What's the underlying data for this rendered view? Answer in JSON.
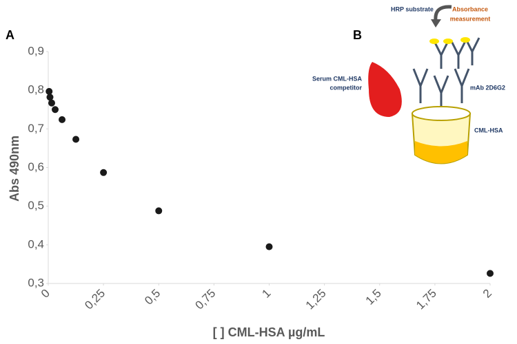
{
  "chart_data": {
    "type": "scatter",
    "panel_label": "A",
    "xlabel": "[ ] CML-HSA µg/mL",
    "ylabel": "Abs 490nm",
    "x": [
      0.0039,
      0.0078,
      0.0156,
      0.03125,
      0.0625,
      0.125,
      0.25,
      0.5,
      1,
      2
    ],
    "series": [
      {
        "color": "#1a1a1a",
        "values": [
          0.797,
          0.782,
          0.767,
          0.75,
          0.724,
          0.673,
          0.587,
          0.488,
          0.395,
          0.326
        ]
      }
    ],
    "xlim": [
      0,
      2
    ],
    "ylim": [
      0.3,
      0.9
    ],
    "xticks": [
      0,
      {
        "value": 0.25,
        "label": "0,25"
      },
      {
        "value": 0.5,
        "label": "0,5"
      },
      {
        "value": 0.75,
        "label": "0,75"
      },
      1,
      {
        "value": 1.25,
        "label": "1,25"
      },
      {
        "value": 1.5,
        "label": "1,5"
      },
      {
        "value": 1.75,
        "label": "1,75"
      },
      2
    ],
    "yticks": [
      {
        "value": 0.3,
        "label": "0,3"
      },
      {
        "value": 0.4,
        "label": "0,4"
      },
      {
        "value": 0.5,
        "label": "0,5"
      },
      {
        "value": 0.6,
        "label": "0,6"
      },
      {
        "value": 0.7,
        "label": "0,7"
      },
      {
        "value": 0.8,
        "label": "0,8"
      },
      {
        "value": 0.9,
        "label": "0,9"
      }
    ],
    "grid": false
  },
  "inset": {
    "panel_label": "B",
    "substrate": "HRP substrate",
    "measurement": [
      "Absorbance",
      "measurement"
    ],
    "competitor": [
      "Serum CML-HSA",
      "competitor"
    ],
    "antibody": "mAb 2D6G2",
    "coating": "CML-HSA"
  }
}
